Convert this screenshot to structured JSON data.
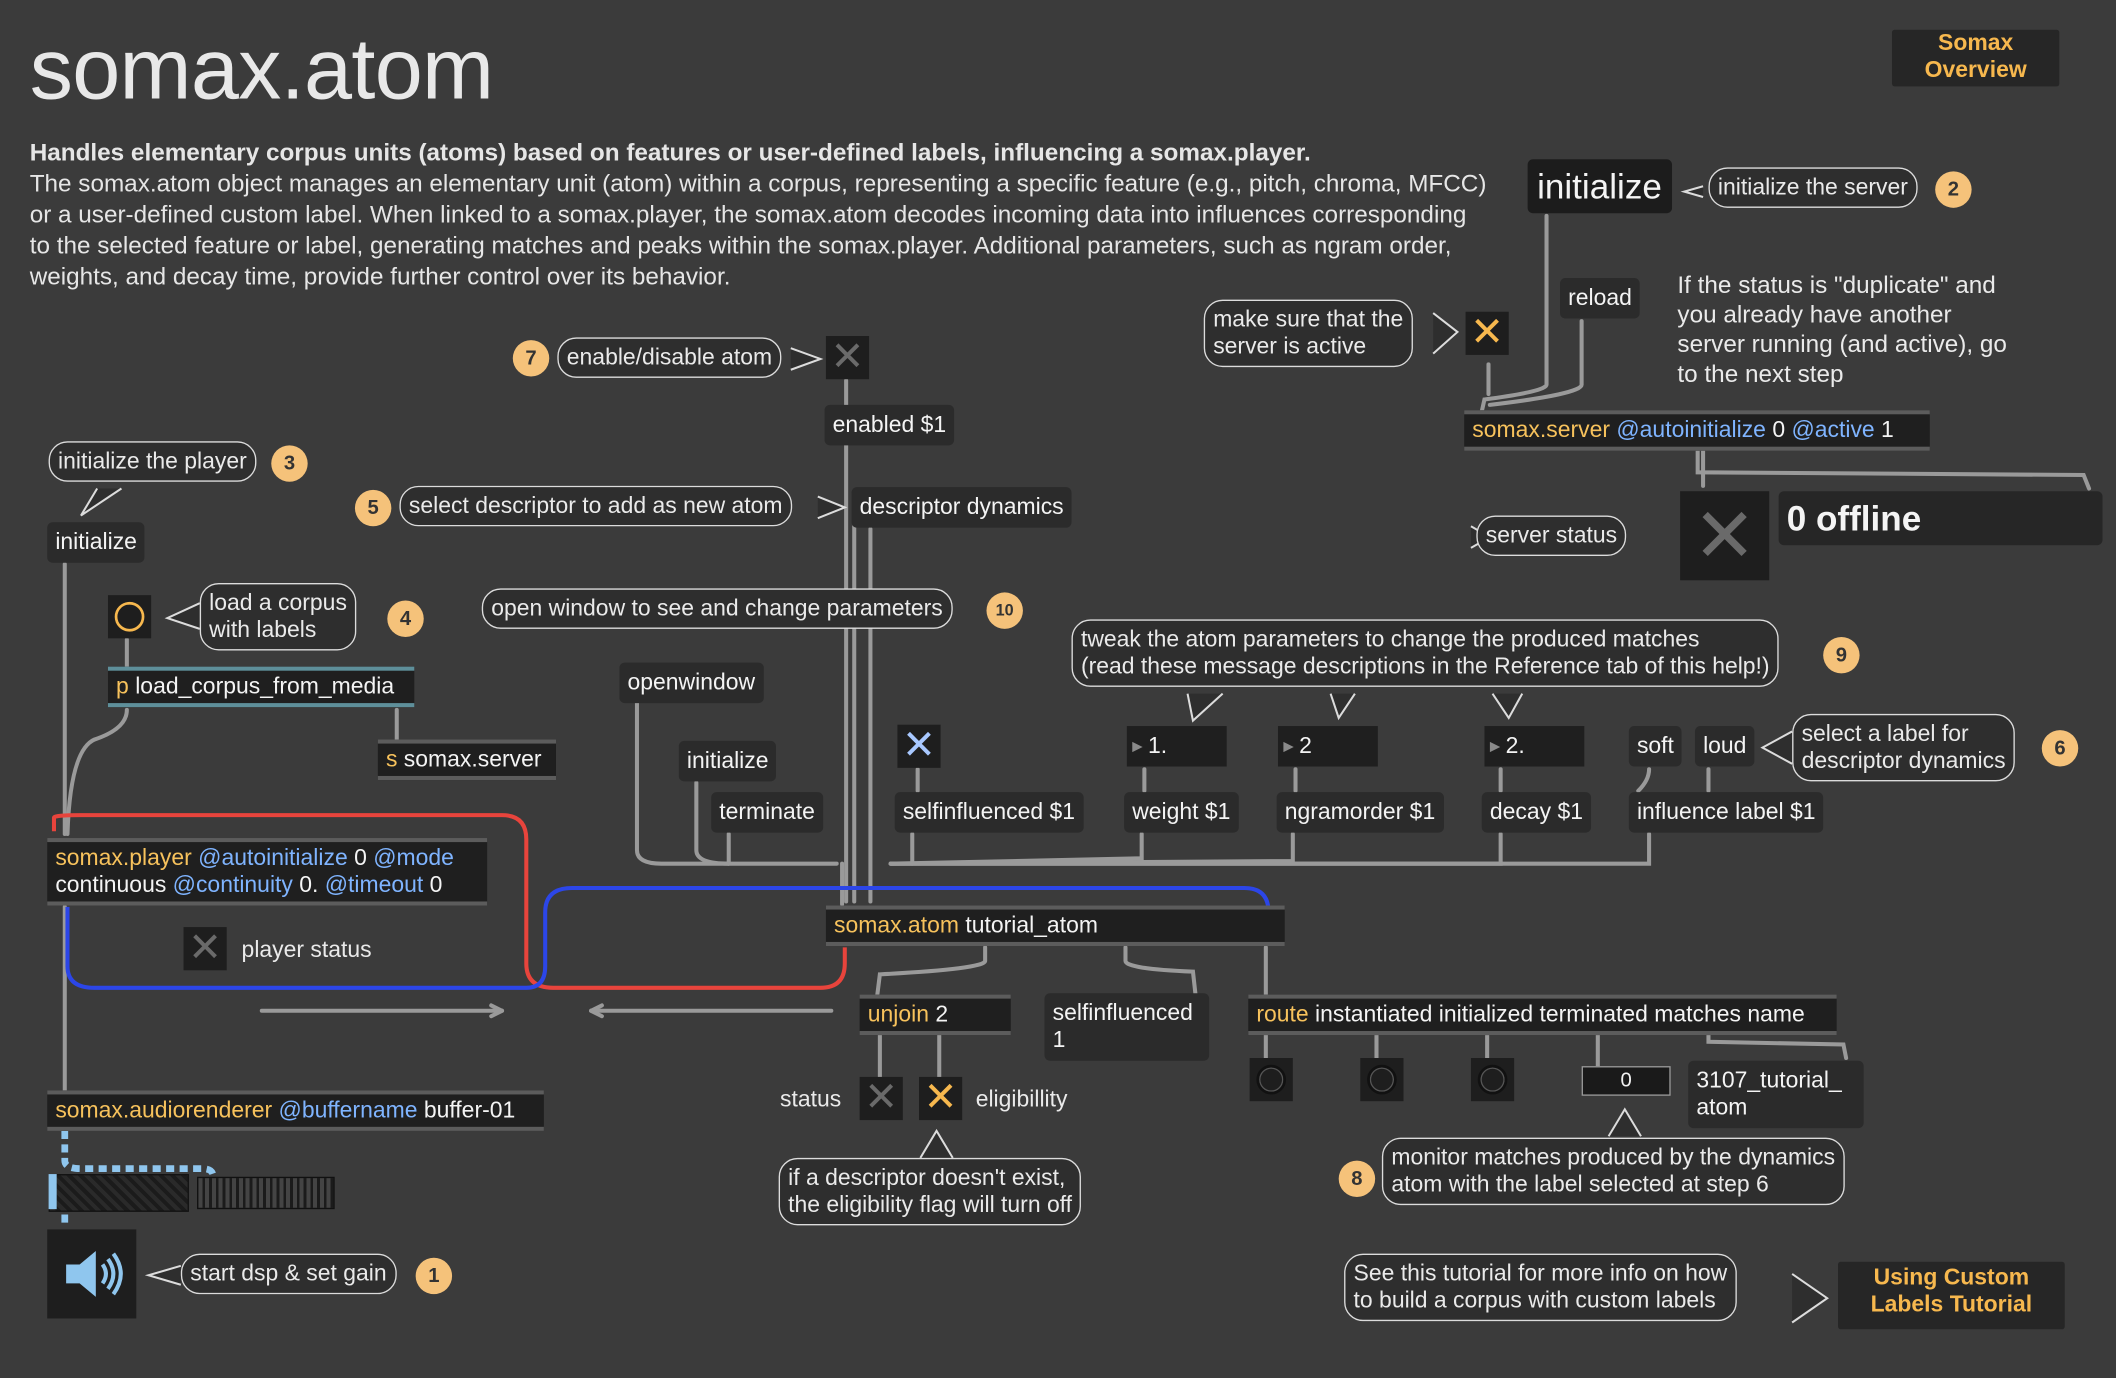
{
  "header": {
    "title": "somax.atom",
    "summary": "Handles elementary corpus units (atoms) based on features or user-defined labels, influencing a somax.player.",
    "description": "The somax.atom object manages an elementary unit (atom) within a corpus, representing a specific feature (e.g., pitch, chroma, MFCC) or a user-defined custom label. When linked to a somax.player, the somax.atom decodes incoming data into influences corresponding to the selected feature or label, generating matches and peaks within the somax.player. Additional parameters, such as ngram order, weights, and decay time, provide further control over its behavior."
  },
  "buttons": {
    "overview": [
      "Somax",
      "Overview"
    ],
    "tutorial": [
      "Using Custom",
      "Labels Tutorial"
    ]
  },
  "messages": {
    "initialize_server": "initialize",
    "reload": "reload",
    "enabled": "enabled $1",
    "descriptor_dynamics": "descriptor dynamics",
    "initialize_player": "initialize",
    "openwindow": "openwindow",
    "initialize_atom": "initialize",
    "terminate": "terminate",
    "selfinfluenced": "selfinfluenced $1",
    "weight": "weight $1",
    "ngramorder": "ngramorder $1",
    "decay": "decay $1",
    "soft": "soft",
    "loud": "loud",
    "influence_label": "influence label $1",
    "selfinfluenced_out": [
      "selfinfluenced",
      "1"
    ],
    "label_out": [
      "3107_tutorial_",
      "atom"
    ]
  },
  "numbers": {
    "weight": "1.",
    "ngram": "2",
    "decay": "2.",
    "matches": "0",
    "server_status": "0 offline"
  },
  "objects": {
    "server": {
      "cls": "somax.server",
      "a1": "@autoinitialize",
      "v1": " 0 ",
      "a2": "@active",
      "v2": " 1"
    },
    "load_corpus": {
      "p": "p",
      "rest": " load_corpus_from_media"
    },
    "send_server": {
      "p": "s",
      "rest": " somax.server"
    },
    "player": {
      "cls": "somax.player",
      "a1": "@autoinitialize",
      "v1": " 0 ",
      "a2": "@mode",
      "line2a": "continuous ",
      "a3": "@continuity",
      "v3": " 0. ",
      "a4": "@timeout",
      "v4": " 0"
    },
    "atom": {
      "cls": "somax.atom",
      "rest": " tutorial_atom"
    },
    "unjoin": {
      "cls": "unjoin",
      "rest": " 2"
    },
    "route": {
      "cls": "route",
      "rest": " instantiated initialized terminated matches name"
    },
    "renderer": {
      "cls": "somax.audiorenderer",
      "a1": "@buffername",
      "v1": " buffer-01"
    }
  },
  "comments": {
    "initialize_server": "initialize the server",
    "make_sure": [
      "make sure that the",
      "server is active"
    ],
    "duplicate_note": "If the status is \"duplicate\" and you already have another server running (and active), go to the next step",
    "server_status": "server status",
    "enable_atom": "enable/disable atom",
    "init_player": "initialize the player",
    "select_descriptor": "select descriptor to add as new atom",
    "load_corpus": [
      "load a corpus",
      "with labels"
    ],
    "open_window": "open window to see and change parameters",
    "tweak": [
      "tweak the atom parameters to change the produced matches",
      "(read these message descriptions in the Reference tab of this help!)"
    ],
    "select_label": [
      "select a label for",
      "descriptor dynamics"
    ],
    "player_status": "player status",
    "status": "status",
    "eligibility": "eligibillity",
    "descriptor_missing": [
      "if a descriptor doesn't exist,",
      "the eligibility flag will turn off"
    ],
    "monitor": [
      "monitor matches produced by the dynamics",
      "atom with the label selected at step 6"
    ],
    "start_dsp": "start dsp & set gain",
    "see_tutorial": [
      "See this tutorial for more info on how",
      "to build a corpus with custom labels"
    ]
  },
  "steps": {
    "n1": "1",
    "n2": "2",
    "n3": "3",
    "n4": "4",
    "n5": "5",
    "n6": "6",
    "n7": "7",
    "n8": "8",
    "n9": "9",
    "n10": "10"
  },
  "colors": {
    "accent": "#f7c25c",
    "attr": "#7fb4ff",
    "step_badge": "#f5c27a",
    "patch_red": "#e8443c",
    "patch_blue": "#2c46e8",
    "signal": "#8fc6ee"
  }
}
